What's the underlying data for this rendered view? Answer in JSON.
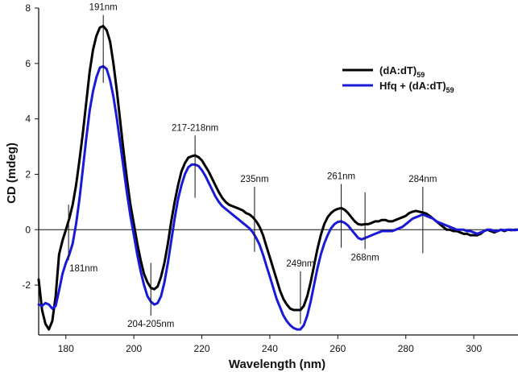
{
  "chart_data": {
    "type": "line",
    "title": "",
    "xlabel": "Wavelength (nm)",
    "ylabel": "CD (mdeg)",
    "xlim": [
      172,
      313
    ],
    "ylim": [
      -3.8,
      8
    ],
    "x_ticks": [
      180,
      200,
      220,
      240,
      260,
      280,
      300
    ],
    "y_ticks": [
      -2,
      0,
      2,
      4,
      6,
      8
    ],
    "zero_line": true,
    "legend_position": "top-right",
    "series": [
      {
        "name": "(dA:dT)",
        "name_base": "(dA:dT)",
        "name_sub": "59",
        "color": "#000000",
        "points": [
          [
            172,
            -1.8
          ],
          [
            173,
            -2.9
          ],
          [
            174,
            -3.4
          ],
          [
            175,
            -3.6
          ],
          [
            176,
            -3.3
          ],
          [
            177,
            -2.4
          ],
          [
            178,
            -0.9
          ],
          [
            179,
            -0.4
          ],
          [
            180,
            0.0
          ],
          [
            181,
            0.4
          ],
          [
            182,
            0.9
          ],
          [
            183,
            1.6
          ],
          [
            184,
            2.5
          ],
          [
            185,
            3.5
          ],
          [
            186,
            4.6
          ],
          [
            187,
            5.7
          ],
          [
            188,
            6.5
          ],
          [
            189,
            7.0
          ],
          [
            190,
            7.3
          ],
          [
            191,
            7.35
          ],
          [
            192,
            7.2
          ],
          [
            193,
            6.8
          ],
          [
            194,
            6.0
          ],
          [
            195,
            5.0
          ],
          [
            196,
            3.9
          ],
          [
            197,
            2.8
          ],
          [
            198,
            1.8
          ],
          [
            199,
            0.9
          ],
          [
            200,
            0.2
          ],
          [
            201,
            -0.5
          ],
          [
            202,
            -1.1
          ],
          [
            203,
            -1.6
          ],
          [
            204,
            -1.9
          ],
          [
            205,
            -2.1
          ],
          [
            206,
            -2.15
          ],
          [
            207,
            -2.05
          ],
          [
            208,
            -1.7
          ],
          [
            209,
            -1.2
          ],
          [
            210,
            -0.5
          ],
          [
            211,
            0.3
          ],
          [
            212,
            1.0
          ],
          [
            213,
            1.6
          ],
          [
            214,
            2.1
          ],
          [
            215,
            2.4
          ],
          [
            216,
            2.6
          ],
          [
            217,
            2.65
          ],
          [
            218,
            2.68
          ],
          [
            219,
            2.62
          ],
          [
            220,
            2.5
          ],
          [
            221,
            2.3
          ],
          [
            222,
            2.1
          ],
          [
            223,
            1.85
          ],
          [
            224,
            1.6
          ],
          [
            225,
            1.35
          ],
          [
            226,
            1.15
          ],
          [
            227,
            1.0
          ],
          [
            228,
            0.9
          ],
          [
            229,
            0.85
          ],
          [
            230,
            0.8
          ],
          [
            231,
            0.75
          ],
          [
            232,
            0.7
          ],
          [
            233,
            0.6
          ],
          [
            234,
            0.55
          ],
          [
            235,
            0.45
          ],
          [
            236,
            0.3
          ],
          [
            237,
            0.1
          ],
          [
            238,
            -0.2
          ],
          [
            239,
            -0.6
          ],
          [
            240,
            -1.0
          ],
          [
            241,
            -1.4
          ],
          [
            242,
            -1.8
          ],
          [
            243,
            -2.2
          ],
          [
            244,
            -2.5
          ],
          [
            245,
            -2.7
          ],
          [
            246,
            -2.85
          ],
          [
            247,
            -2.9
          ],
          [
            248,
            -2.9
          ],
          [
            249,
            -2.9
          ],
          [
            250,
            -2.75
          ],
          [
            251,
            -2.4
          ],
          [
            252,
            -1.9
          ],
          [
            253,
            -1.3
          ],
          [
            254,
            -0.7
          ],
          [
            255,
            -0.2
          ],
          [
            256,
            0.2
          ],
          [
            257,
            0.45
          ],
          [
            258,
            0.6
          ],
          [
            259,
            0.7
          ],
          [
            260,
            0.75
          ],
          [
            261,
            0.78
          ],
          [
            262,
            0.72
          ],
          [
            263,
            0.6
          ],
          [
            264,
            0.45
          ],
          [
            265,
            0.3
          ],
          [
            266,
            0.2
          ],
          [
            267,
            0.18
          ],
          [
            268,
            0.2
          ],
          [
            269,
            0.2
          ],
          [
            270,
            0.25
          ],
          [
            271,
            0.3
          ],
          [
            272,
            0.3
          ],
          [
            273,
            0.35
          ],
          [
            274,
            0.35
          ],
          [
            275,
            0.3
          ],
          [
            276,
            0.3
          ],
          [
            277,
            0.35
          ],
          [
            278,
            0.4
          ],
          [
            279,
            0.45
          ],
          [
            280,
            0.5
          ],
          [
            281,
            0.6
          ],
          [
            282,
            0.65
          ],
          [
            283,
            0.68
          ],
          [
            284,
            0.65
          ],
          [
            285,
            0.62
          ],
          [
            286,
            0.58
          ],
          [
            287,
            0.5
          ],
          [
            288,
            0.4
          ],
          [
            289,
            0.3
          ],
          [
            290,
            0.2
          ],
          [
            291,
            0.1
          ],
          [
            292,
            0.0
          ],
          [
            293,
            0.0
          ],
          [
            294,
            -0.05
          ],
          [
            295,
            -0.05
          ],
          [
            296,
            -0.1
          ],
          [
            297,
            -0.15
          ],
          [
            298,
            -0.15
          ],
          [
            299,
            -0.2
          ],
          [
            300,
            -0.2
          ],
          [
            301,
            -0.2
          ],
          [
            302,
            -0.15
          ],
          [
            303,
            -0.05
          ],
          [
            304,
            0.0
          ],
          [
            305,
            -0.05
          ],
          [
            306,
            -0.1
          ],
          [
            307,
            -0.05
          ],
          [
            308,
            0.0
          ],
          [
            309,
            -0.05
          ],
          [
            310,
            0.0
          ],
          [
            311,
            -0.02
          ],
          [
            312,
            0.0
          ],
          [
            313,
            0.0
          ]
        ]
      },
      {
        "name": "Hfq + (dA:dT)",
        "name_base": "Hfq + (dA:dT)",
        "name_sub": "59",
        "color": "#1a1ad6",
        "points": [
          [
            172,
            -2.7
          ],
          [
            173,
            -2.75
          ],
          [
            174,
            -2.65
          ],
          [
            175,
            -2.7
          ],
          [
            176,
            -2.85
          ],
          [
            177,
            -2.75
          ],
          [
            178,
            -2.2
          ],
          [
            179,
            -1.6
          ],
          [
            180,
            -1.2
          ],
          [
            181,
            -0.9
          ],
          [
            182,
            -0.5
          ],
          [
            183,
            0.2
          ],
          [
            184,
            1.1
          ],
          [
            185,
            2.2
          ],
          [
            186,
            3.3
          ],
          [
            187,
            4.3
          ],
          [
            188,
            5.0
          ],
          [
            189,
            5.5
          ],
          [
            190,
            5.85
          ],
          [
            191,
            5.9
          ],
          [
            192,
            5.8
          ],
          [
            193,
            5.4
          ],
          [
            194,
            4.8
          ],
          [
            195,
            4.0
          ],
          [
            196,
            3.1
          ],
          [
            197,
            2.2
          ],
          [
            198,
            1.3
          ],
          [
            199,
            0.5
          ],
          [
            200,
            -0.2
          ],
          [
            201,
            -0.9
          ],
          [
            202,
            -1.5
          ],
          [
            203,
            -2.0
          ],
          [
            204,
            -2.4
          ],
          [
            205,
            -2.6
          ],
          [
            206,
            -2.7
          ],
          [
            207,
            -2.65
          ],
          [
            208,
            -2.4
          ],
          [
            209,
            -1.9
          ],
          [
            210,
            -1.2
          ],
          [
            211,
            -0.4
          ],
          [
            212,
            0.4
          ],
          [
            213,
            1.1
          ],
          [
            214,
            1.6
          ],
          [
            215,
            2.0
          ],
          [
            216,
            2.25
          ],
          [
            217,
            2.35
          ],
          [
            218,
            2.35
          ],
          [
            219,
            2.3
          ],
          [
            220,
            2.15
          ],
          [
            221,
            1.95
          ],
          [
            222,
            1.7
          ],
          [
            223,
            1.45
          ],
          [
            224,
            1.2
          ],
          [
            225,
            1.0
          ],
          [
            226,
            0.85
          ],
          [
            227,
            0.75
          ],
          [
            228,
            0.65
          ],
          [
            229,
            0.55
          ],
          [
            230,
            0.45
          ],
          [
            231,
            0.35
          ],
          [
            232,
            0.25
          ],
          [
            233,
            0.15
          ],
          [
            234,
            0.05
          ],
          [
            235,
            -0.1
          ],
          [
            236,
            -0.3
          ],
          [
            237,
            -0.55
          ],
          [
            238,
            -0.9
          ],
          [
            239,
            -1.3
          ],
          [
            240,
            -1.7
          ],
          [
            241,
            -2.1
          ],
          [
            242,
            -2.5
          ],
          [
            243,
            -2.8
          ],
          [
            244,
            -3.1
          ],
          [
            245,
            -3.3
          ],
          [
            246,
            -3.45
          ],
          [
            247,
            -3.55
          ],
          [
            248,
            -3.6
          ],
          [
            249,
            -3.6
          ],
          [
            250,
            -3.45
          ],
          [
            251,
            -3.1
          ],
          [
            252,
            -2.6
          ],
          [
            253,
            -2.0
          ],
          [
            254,
            -1.4
          ],
          [
            255,
            -0.9
          ],
          [
            256,
            -0.5
          ],
          [
            257,
            -0.2
          ],
          [
            258,
            0.05
          ],
          [
            259,
            0.2
          ],
          [
            260,
            0.28
          ],
          [
            261,
            0.3
          ],
          [
            262,
            0.25
          ],
          [
            263,
            0.15
          ],
          [
            264,
            0.0
          ],
          [
            265,
            -0.15
          ],
          [
            266,
            -0.3
          ],
          [
            267,
            -0.35
          ],
          [
            268,
            -0.3
          ],
          [
            269,
            -0.25
          ],
          [
            270,
            -0.2
          ],
          [
            271,
            -0.15
          ],
          [
            272,
            -0.1
          ],
          [
            273,
            -0.05
          ],
          [
            274,
            -0.05
          ],
          [
            275,
            -0.05
          ],
          [
            276,
            -0.05
          ],
          [
            277,
            0.0
          ],
          [
            278,
            0.05
          ],
          [
            279,
            0.1
          ],
          [
            280,
            0.2
          ],
          [
            281,
            0.3
          ],
          [
            282,
            0.4
          ],
          [
            283,
            0.45
          ],
          [
            284,
            0.5
          ],
          [
            285,
            0.55
          ],
          [
            286,
            0.5
          ],
          [
            287,
            0.45
          ],
          [
            288,
            0.4
          ],
          [
            289,
            0.3
          ],
          [
            290,
            0.25
          ],
          [
            291,
            0.2
          ],
          [
            292,
            0.15
          ],
          [
            293,
            0.1
          ],
          [
            294,
            0.05
          ],
          [
            295,
            0.0
          ],
          [
            296,
            0.0
          ],
          [
            297,
            0.0
          ],
          [
            298,
            -0.05
          ],
          [
            299,
            -0.05
          ],
          [
            300,
            -0.1
          ],
          [
            301,
            -0.15
          ],
          [
            302,
            -0.1
          ],
          [
            303,
            -0.05
          ],
          [
            304,
            0.0
          ],
          [
            305,
            0.0
          ],
          [
            306,
            -0.05
          ],
          [
            307,
            -0.05
          ],
          [
            308,
            0.0
          ],
          [
            309,
            -0.02
          ],
          [
            310,
            0.0
          ],
          [
            311,
            0.0
          ],
          [
            312,
            -0.02
          ],
          [
            313,
            0.0
          ]
        ]
      }
    ],
    "annotations": [
      {
        "text": "191nm",
        "x": 191,
        "y_from": 5.3,
        "y_to": 7.75,
        "label_side": "above",
        "anchor": "middle"
      },
      {
        "text": "181nm",
        "x": 180.8,
        "y_from": -1.1,
        "y_to": 0.9,
        "label_side": "below",
        "anchor": "start"
      },
      {
        "text": "204-205nm",
        "x": 205,
        "y_from": -3.1,
        "y_to": -1.2,
        "label_side": "below",
        "anchor": "middle"
      },
      {
        "text": "217-218nm",
        "x": 218,
        "y_from": 1.15,
        "y_to": 3.4,
        "label_side": "above",
        "anchor": "middle"
      },
      {
        "text": "235nm",
        "x": 235.5,
        "y_from": -0.8,
        "y_to": 1.55,
        "label_side": "above",
        "anchor": "middle"
      },
      {
        "text": "249nm",
        "x": 249,
        "y_from": -3.4,
        "y_to": -1.5,
        "label_side": "above",
        "anchor": "middle"
      },
      {
        "text": "261nm",
        "x": 261,
        "y_from": -0.65,
        "y_to": 1.65,
        "label_side": "above",
        "anchor": "middle"
      },
      {
        "text": "268nm",
        "x": 268,
        "y_from": -0.7,
        "y_to": 1.35,
        "label_side": "below",
        "anchor": "middle"
      },
      {
        "text": "284nm",
        "x": 285,
        "y_from": -0.85,
        "y_to": 1.55,
        "label_side": "above",
        "anchor": "middle"
      }
    ]
  }
}
